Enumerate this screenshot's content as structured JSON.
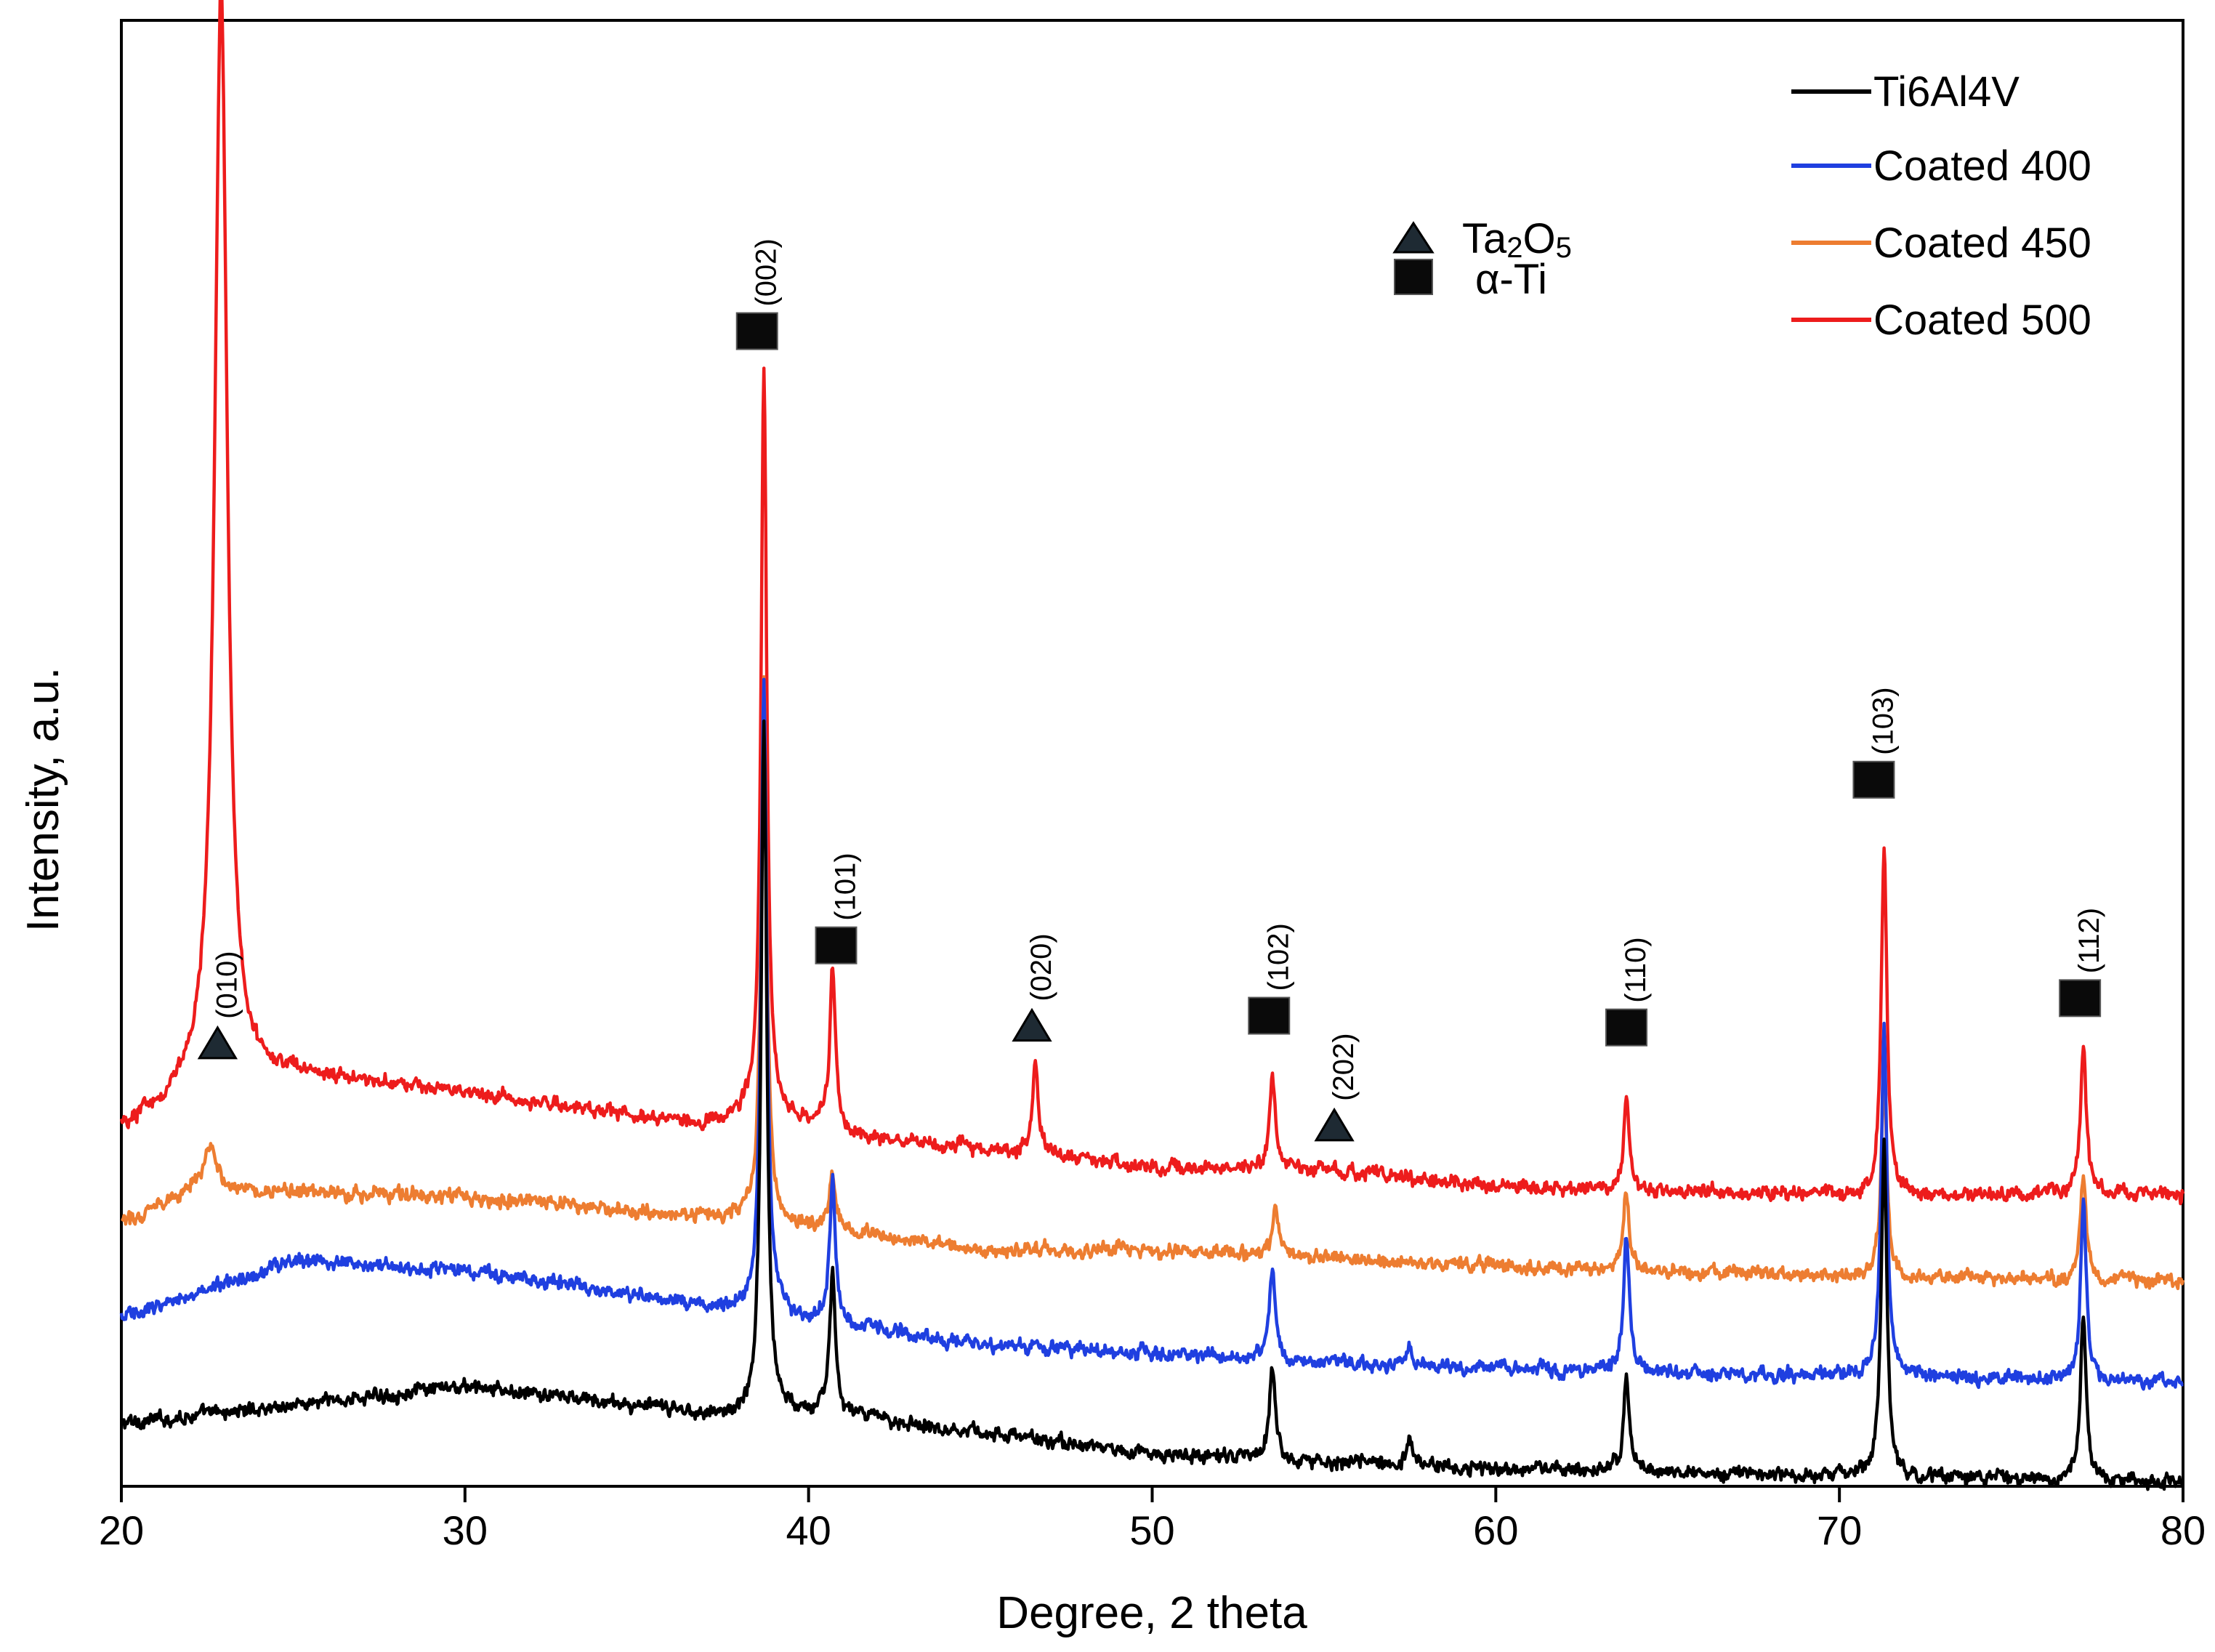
{
  "chart_data": {
    "type": "line",
    "title": "",
    "xlabel": "Degree, 2 theta",
    "ylabel": "Intensity, a.u.",
    "xlim": [
      20,
      80
    ],
    "ylim": [
      0,
      100
    ],
    "xticks": [
      "20",
      "30",
      "40",
      "50",
      "60",
      "70",
      "80"
    ],
    "grid": false,
    "legend_position": "top-right",
    "series": [
      {
        "name": "Ti6Al4V",
        "color": "#000000",
        "baseline": [
          [
            20,
            4.3
          ],
          [
            30,
            6.8
          ],
          [
            38,
            4.7
          ],
          [
            40,
            5.2
          ],
          [
            50,
            2.2
          ],
          [
            60,
            1.2
          ],
          [
            70,
            0.7
          ],
          [
            80,
            0.3
          ]
        ],
        "peaks": [
          [
            38.7,
            47
          ],
          [
            40.7,
            9.5
          ],
          [
            53.5,
            6.5
          ],
          [
            57.5,
            1.5
          ],
          [
            63.8,
            6.7
          ],
          [
            71.3,
            22.5
          ],
          [
            77.1,
            11.2
          ]
        ]
      },
      {
        "name": "Coated 400",
        "color": "#1f3fe0",
        "baseline": [
          [
            20,
            11.5
          ],
          [
            25,
            15.4
          ],
          [
            30,
            14.8
          ],
          [
            36,
            12.6
          ],
          [
            38,
            12.0
          ],
          [
            45,
            9.7
          ],
          [
            55,
            8.5
          ],
          [
            65,
            7.7
          ],
          [
            80,
            7.1
          ]
        ],
        "peaks": [
          [
            38.7,
            43
          ],
          [
            40.7,
            9.5
          ],
          [
            53.5,
            6.5
          ],
          [
            57.5,
            1.2
          ],
          [
            63.8,
            9.5
          ],
          [
            71.3,
            24
          ],
          [
            77.1,
            12.3
          ]
        ]
      },
      {
        "name": "Coated 450",
        "color": "#ed7d31",
        "baseline": [
          [
            20,
            17.9
          ],
          [
            22,
            20.3
          ],
          [
            30,
            19.7
          ],
          [
            38,
            18.2
          ],
          [
            45,
            16.2
          ],
          [
            50,
            16.1
          ],
          [
            60,
            15.0
          ],
          [
            70,
            14.3
          ],
          [
            80,
            14.0
          ]
        ],
        "peaks": [
          [
            22.6,
            3.2
          ],
          [
            38.7,
            37
          ],
          [
            40.7,
            4.3
          ],
          [
            53.6,
            3.5
          ],
          [
            63.8,
            5.2
          ],
          [
            71.3,
            13.5
          ],
          [
            77.1,
            7.0
          ]
        ]
      },
      {
        "name": "Coated 500",
        "color": "#ed1c1c",
        "baseline": [
          [
            20,
            24.3
          ],
          [
            22,
            26.7
          ],
          [
            25,
            28.0
          ],
          [
            30,
            26.9
          ],
          [
            37,
            24.6
          ],
          [
            38.5,
            25.5
          ],
          [
            41,
            24.0
          ],
          [
            50,
            21.8
          ],
          [
            55,
            21.6
          ],
          [
            60,
            20.5
          ],
          [
            70,
            19.8
          ],
          [
            80,
            20.0
          ]
        ],
        "peaks": [
          [
            22.9,
            75
          ],
          [
            38.7,
            51
          ],
          [
            40.7,
            11.0
          ],
          [
            46.6,
            6.5
          ],
          [
            53.5,
            6.3
          ],
          [
            63.8,
            6.4
          ],
          [
            71.3,
            23.6
          ],
          [
            77.1,
            10.3
          ]
        ]
      }
    ],
    "legend": [
      "Ti6Al4V",
      "Coated 400",
      "Coated 450",
      "Coated 500"
    ],
    "phase_legend": [
      {
        "symbol": "triangle",
        "label_main": "Ta",
        "label_sub1": "2",
        "label_mid": "O",
        "label_sub2": "5"
      },
      {
        "symbol": "square",
        "label": "α-Ti"
      }
    ],
    "annotations": [
      {
        "label": "(010)",
        "x": 22.8,
        "symbol": "triangle",
        "y": 30.2
      },
      {
        "label": "(002)",
        "x": 38.5,
        "symbol": "square",
        "y": 78.8
      },
      {
        "label": "(101)",
        "x": 40.8,
        "symbol": "square",
        "y": 36.9
      },
      {
        "label": "(020)",
        "x": 46.5,
        "symbol": "triangle",
        "y": 31.4
      },
      {
        "label": "(102)",
        "x": 53.4,
        "symbol": "square",
        "y": 32.1
      },
      {
        "label": "(202)",
        "x": 55.3,
        "symbol": "triangle",
        "y": 24.6
      },
      {
        "label": "(110)",
        "x": 63.8,
        "symbol": "square",
        "y": 31.3
      },
      {
        "label": "(103)",
        "x": 71.0,
        "symbol": "square",
        "y": 48.2
      },
      {
        "label": "(112)",
        "x": 77.0,
        "symbol": "square",
        "y": 33.3
      }
    ]
  }
}
